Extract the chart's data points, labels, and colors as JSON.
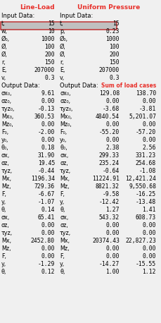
{
  "title1": "Line-Load",
  "title2": "Uniform Pressure",
  "input_label": "Input Data:",
  "output_label": "Output Data:",
  "sum_label": "Sum of load cases",
  "input_rows_ll": [
    [
      "t,",
      "15"
    ],
    [
      "w,",
      "10"
    ],
    [
      "Ø₀,",
      "1000"
    ],
    [
      "Ø,",
      "100"
    ],
    [
      "Ø,",
      "200"
    ],
    [
      "r,",
      "150"
    ],
    [
      "E,",
      "207000"
    ],
    [
      "v,",
      "0.3"
    ]
  ],
  "input_rows_up": [
    [
      "t,",
      "15"
    ],
    [
      "p,",
      "0.23"
    ],
    [
      "Ø₀,",
      "1000"
    ],
    [
      "Ø,",
      "100"
    ],
    [
      "Ø,",
      "200"
    ],
    [
      "r,",
      "150"
    ],
    [
      "E,",
      "207000"
    ],
    [
      "v,",
      "0.3"
    ]
  ],
  "output_rows_ll": [
    [
      "σx₀,",
      "9.61"
    ],
    [
      "σz₀,",
      "0.00"
    ],
    [
      "τyz₀,",
      "-0.13"
    ],
    [
      "Mx₀,",
      "360.53"
    ],
    [
      "Mz₀,",
      "0.00"
    ],
    [
      "F₀,",
      "-2.00"
    ],
    [
      "y₀,",
      "0.00"
    ],
    [
      "θ₀,",
      "0.18"
    ],
    [
      "σx,",
      "31.90"
    ],
    [
      "σz,",
      "19.45"
    ],
    [
      "τyz,",
      "-0.44"
    ],
    [
      "Mx,",
      "1196.34"
    ],
    [
      "Mz,",
      "729.36"
    ],
    [
      "F,",
      "-6.67"
    ],
    [
      "y,",
      "-1.07"
    ],
    [
      "θ,",
      "0.14"
    ],
    [
      "σx,",
      "65.41"
    ],
    [
      "σz,",
      "0.00"
    ],
    [
      "τyz,",
      "0.00"
    ],
    [
      "Mx,",
      "2452.80"
    ],
    [
      "Mz,",
      "0.00"
    ],
    [
      "F,",
      "0.00"
    ],
    [
      "y,",
      "-1.29"
    ],
    [
      "θ,",
      "0.12"
    ]
  ],
  "output_rows_up": [
    [
      "σx₀,",
      "129.08"
    ],
    [
      "σz₀,",
      "0.00"
    ],
    [
      "τyz₀,",
      "-3.68"
    ],
    [
      "Mx₀,",
      "4840.54"
    ],
    [
      "Mz₀,",
      "0.00"
    ],
    [
      "F₀,",
      "-55.20"
    ],
    [
      "y₀,",
      "0.00"
    ],
    [
      "θ₀,",
      "2.38"
    ],
    [
      "σx,",
      "299.33"
    ],
    [
      "σz,",
      "235.24"
    ],
    [
      "τyz,",
      "-0.64"
    ],
    [
      "Mx,",
      "11224.91"
    ],
    [
      "Mz,",
      "8821.32"
    ],
    [
      "F,",
      "-9.58"
    ],
    [
      "y,",
      "-12.42"
    ],
    [
      "θ,",
      "1.27"
    ],
    [
      "σx,",
      "543.32"
    ],
    [
      "σz,",
      "0.00"
    ],
    [
      "τyz,",
      "0.00"
    ],
    [
      "Mx,",
      "20374.43"
    ],
    [
      "Mz,",
      "0.00"
    ],
    [
      "F,",
      "0.00"
    ],
    [
      "y,",
      "-14.27"
    ],
    [
      "θ,",
      "1.00"
    ]
  ],
  "sum_rows": [
    "138.70",
    "0.00",
    "-3.81",
    "5,201.07",
    "0.00",
    "-57.20",
    "0.00",
    "2.56",
    "331.23",
    "254.68",
    "-1.08",
    "12,421.24",
    "9,550.68",
    "-16.25",
    "-13.48",
    "1.41",
    "608.73",
    "0.00",
    "0.00",
    "22,827.23",
    "0.00",
    "0.00",
    "-15.55",
    "1.12"
  ],
  "bg_color": "#f0f0f0",
  "title_color_ll": "#e8302a",
  "title_color_up": "#e8302a",
  "sum_color": "#e8302a",
  "text_color": "#000000",
  "highlight_row_ll": 1,
  "highlight_row_up": 1,
  "highlight_color": "#c0c0c0",
  "box_color": "#c04040"
}
